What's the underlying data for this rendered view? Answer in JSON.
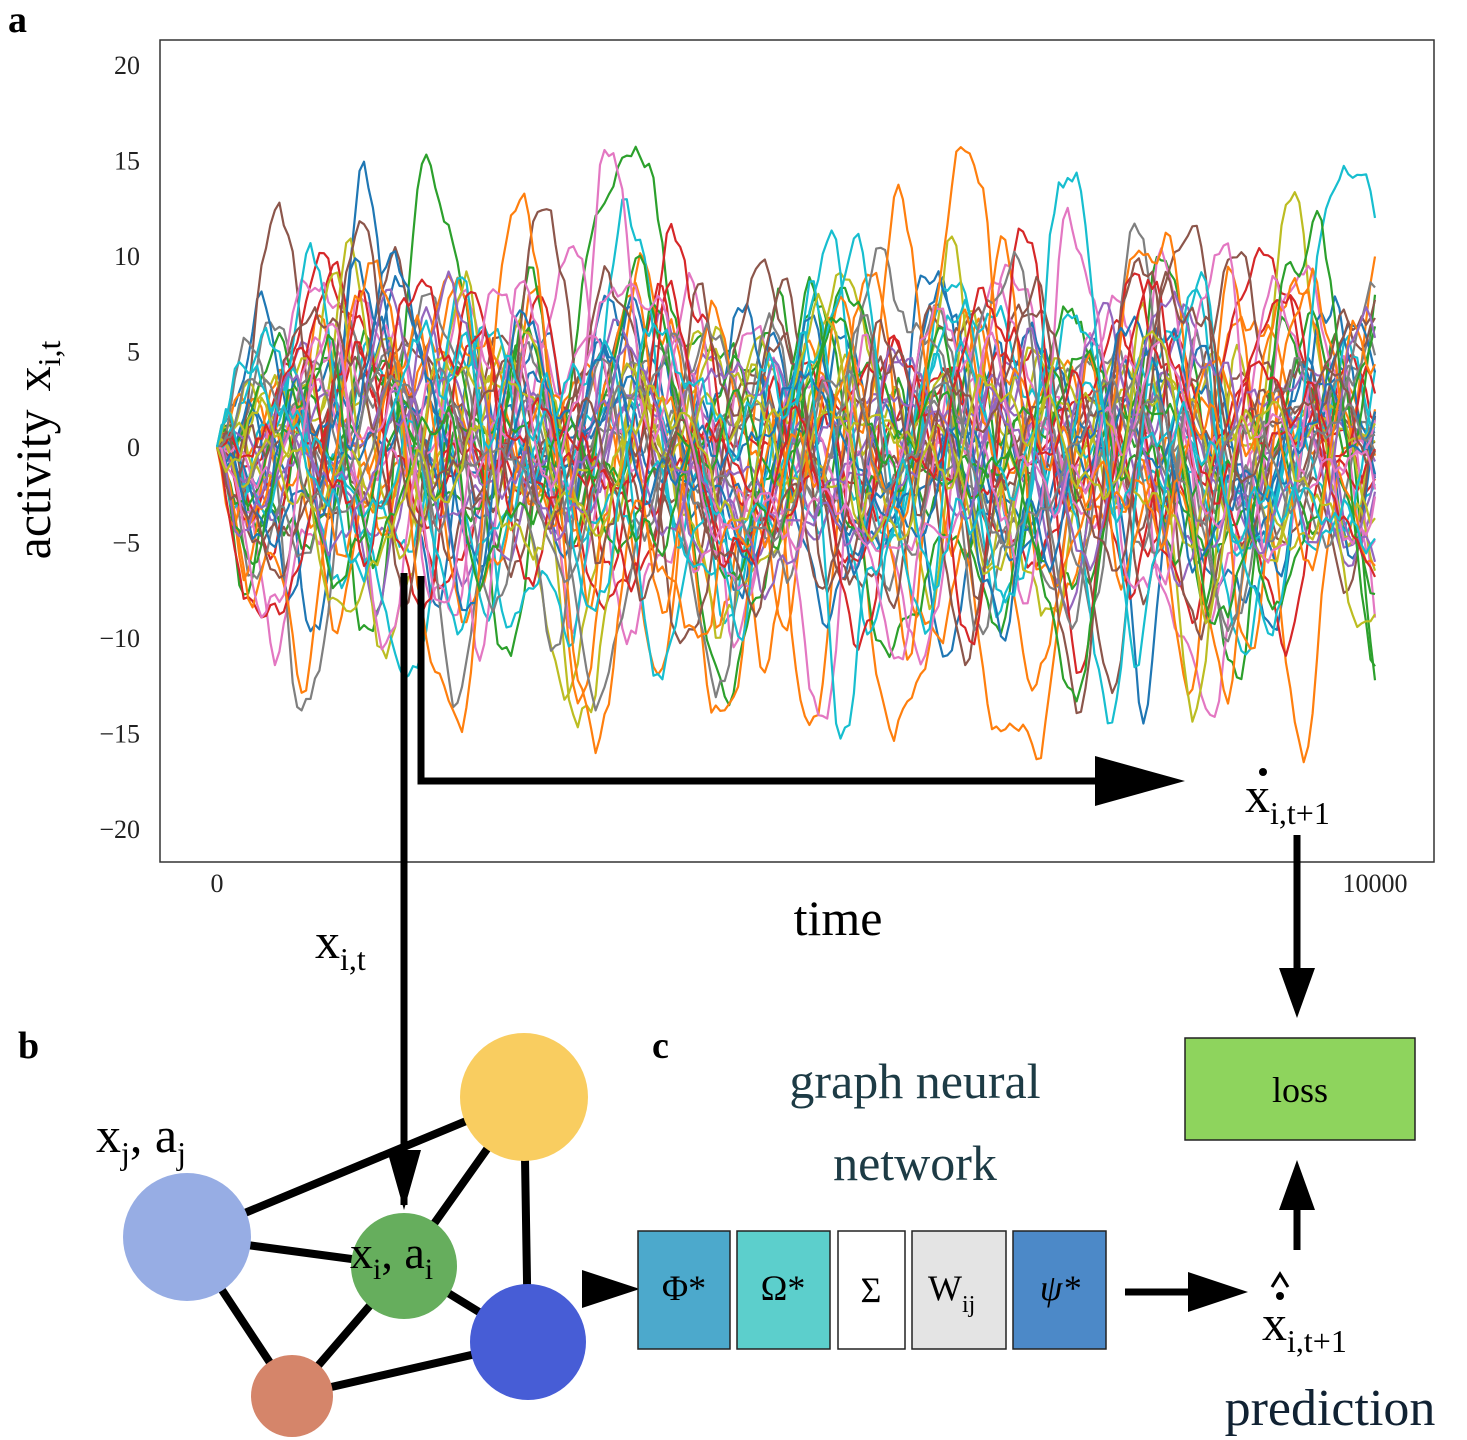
{
  "panels": {
    "a": "a",
    "b": "b",
    "c": "c"
  },
  "chart_data": {
    "type": "line",
    "xlabel": "time",
    "ylabel": "activity",
    "ylabel_symbol": "x",
    "ylabel_sub": "i,t",
    "xlim": [
      0,
      10000
    ],
    "ylim": [
      -22,
      20
    ],
    "x_ticks": [
      0,
      10000
    ],
    "y_ticks": [
      20,
      15,
      10,
      5,
      0,
      -5,
      -10,
      -15,
      -20
    ],
    "y_tick_labels": [
      "20",
      "15",
      "10",
      "5",
      "0",
      "−5",
      "−10",
      "−15",
      "−20"
    ],
    "grid": false,
    "n_series": 50,
    "colors": [
      "#1f77b4",
      "#ff7f0e",
      "#2ca02c",
      "#d62728",
      "#9467bd",
      "#8c564b",
      "#e377c2",
      "#7f7f7f",
      "#bcbd22",
      "#17becf"
    ]
  },
  "arrows": {
    "input_symbol": "x",
    "input_sub": "i,t",
    "target_symbol": "x",
    "target_sub": "i,t+1"
  },
  "graph": {
    "neighbor_label": "x",
    "neighbor_sub": "j",
    "neighbor_attr": "a",
    "neighbor_attr_sub": "j",
    "node_label": "x",
    "node_sub": "i",
    "node_attr": "a",
    "node_attr_sub": "i",
    "node_colors": {
      "yellow": "#f9cd60",
      "lightblue": "#97ade4",
      "green": "#66ae5d",
      "blue": "#475dd6",
      "salmon": "#d5856a"
    }
  },
  "gnn": {
    "title_line1": "graph neural",
    "title_line2": "network",
    "blocks": [
      {
        "label": "Φ*",
        "color": "#4ca9cc"
      },
      {
        "label": "Ω*",
        "color": "#5ccfcc"
      },
      {
        "label": "Σ",
        "color": "#ffffff"
      },
      {
        "label": "W",
        "sub": "ij",
        "color": "#e4e4e4"
      },
      {
        "label": "ψ*",
        "color": "#4c89c8"
      }
    ]
  },
  "loss": {
    "label": "loss",
    "color": "#8ed45d"
  },
  "prediction": {
    "symbol": "x",
    "sub": "i,t+1",
    "label": "prediction"
  }
}
